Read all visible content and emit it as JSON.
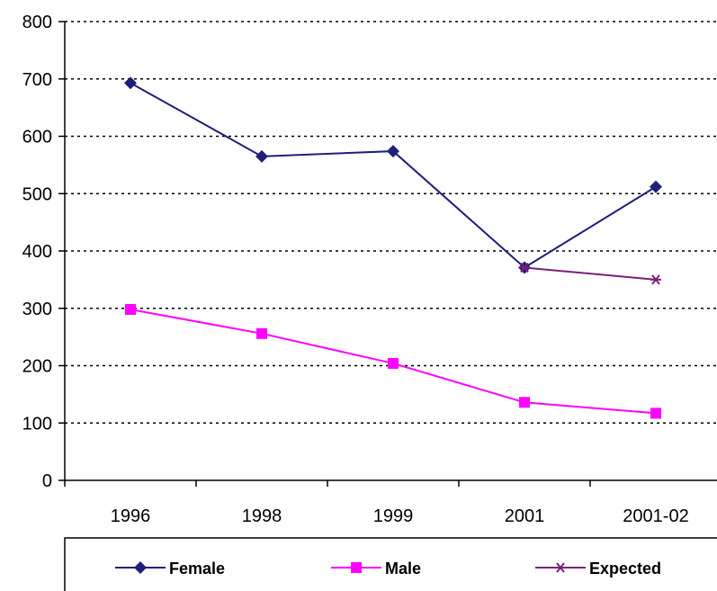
{
  "chart_data": {
    "type": "line",
    "categories": [
      "1996",
      "1998",
      "1999",
      "2001",
      "2001-02"
    ],
    "series": [
      {
        "name": "Female",
        "values": [
          693,
          565,
          574,
          371,
          512
        ],
        "color": "#1f1f7a",
        "marker": "diamond"
      },
      {
        "name": "Male",
        "values": [
          298,
          256,
          204,
          136,
          117
        ],
        "color": "#ff00ff",
        "marker": "square"
      },
      {
        "name": "Expected",
        "values": [
          null,
          null,
          null,
          371,
          350
        ],
        "color": "#7a1f7a",
        "marker": "star"
      }
    ],
    "ylim": [
      0,
      800
    ],
    "yticks": [
      0,
      100,
      200,
      300,
      400,
      500,
      600,
      700,
      800
    ],
    "grid": "horizontal-dotted",
    "legend_position": "bottom"
  }
}
